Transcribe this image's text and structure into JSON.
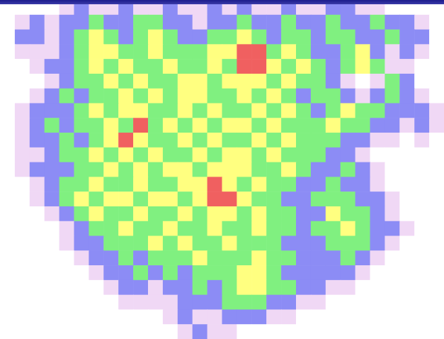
{
  "chart_data": {
    "type": "heatmap",
    "tick_labels": false,
    "clim": [
      0,
      5
    ],
    "colors": [
      "#ffffff",
      "#f0d8f5",
      "#8c8cf5",
      "#80f080",
      "#ffff80",
      "#f06060"
    ],
    "cells": [
      [
        0,
        0,
        0,
        0,
        1,
        2,
        1,
        1,
        2,
        1,
        1,
        2,
        1,
        1,
        2,
        1,
        2,
        1,
        1,
        2,
        1,
        1,
        2,
        2,
        1,
        1,
        0,
        0,
        0,
        0
      ],
      [
        0,
        1,
        2,
        1,
        2,
        2,
        3,
        2,
        2,
        3,
        3,
        2,
        2,
        1,
        2,
        2,
        3,
        2,
        2,
        3,
        2,
        2,
        3,
        2,
        2,
        3,
        2,
        2,
        1,
        0
      ],
      [
        0,
        2,
        2,
        1,
        2,
        3,
        4,
        3,
        2,
        3,
        4,
        3,
        2,
        2,
        3,
        3,
        4,
        3,
        2,
        3,
        3,
        2,
        3,
        3,
        2,
        2,
        3,
        2,
        2,
        0
      ],
      [
        0,
        1,
        1,
        1,
        2,
        3,
        4,
        4,
        3,
        3,
        4,
        3,
        3,
        3,
        4,
        4,
        5,
        5,
        3,
        4,
        3,
        2,
        2,
        3,
        4,
        2,
        1,
        2,
        1,
        0
      ],
      [
        0,
        0,
        1,
        2,
        2,
        3,
        4,
        3,
        4,
        3,
        3,
        4,
        3,
        3,
        4,
        3,
        5,
        5,
        4,
        3,
        4,
        3,
        2,
        3,
        4,
        3,
        1,
        1,
        0,
        0
      ],
      [
        0,
        0,
        0,
        1,
        2,
        3,
        3,
        4,
        3,
        4,
        3,
        3,
        4,
        4,
        3,
        4,
        4,
        4,
        3,
        4,
        3,
        3,
        2,
        1,
        0,
        1,
        3,
        2,
        0,
        0
      ],
      [
        0,
        0,
        1,
        2,
        3,
        2,
        3,
        3,
        4,
        3,
        4,
        3,
        4,
        4,
        3,
        3,
        4,
        3,
        4,
        3,
        2,
        3,
        3,
        2,
        1,
        2,
        3,
        2,
        1,
        0
      ],
      [
        0,
        1,
        2,
        2,
        2,
        3,
        4,
        3,
        4,
        4,
        3,
        3,
        4,
        3,
        4,
        3,
        3,
        4,
        3,
        4,
        3,
        2,
        3,
        4,
        3,
        3,
        2,
        2,
        2,
        1
      ],
      [
        0,
        1,
        2,
        3,
        2,
        3,
        3,
        4,
        3,
        5,
        3,
        4,
        3,
        4,
        3,
        4,
        4,
        3,
        4,
        3,
        3,
        3,
        4,
        3,
        3,
        2,
        2,
        1,
        2,
        1
      ],
      [
        0,
        1,
        2,
        2,
        3,
        2,
        3,
        4,
        5,
        4,
        3,
        3,
        4,
        3,
        4,
        3,
        3,
        4,
        3,
        4,
        3,
        3,
        3,
        2,
        2,
        1,
        1,
        0,
        1,
        0
      ],
      [
        0,
        1,
        1,
        2,
        3,
        3,
        4,
        3,
        4,
        3,
        4,
        3,
        3,
        4,
        3,
        4,
        4,
        3,
        4,
        3,
        3,
        3,
        2,
        2,
        1,
        0,
        0,
        0,
        0,
        0
      ],
      [
        0,
        1,
        2,
        2,
        2,
        3,
        3,
        4,
        3,
        4,
        3,
        4,
        4,
        3,
        4,
        4,
        4,
        3,
        3,
        4,
        3,
        2,
        2,
        3,
        2,
        1,
        0,
        0,
        0,
        0
      ],
      [
        0,
        0,
        1,
        2,
        3,
        3,
        4,
        3,
        3,
        4,
        3,
        3,
        4,
        4,
        5,
        4,
        3,
        4,
        3,
        3,
        2,
        2,
        3,
        2,
        2,
        1,
        0,
        0,
        0,
        0
      ],
      [
        0,
        0,
        1,
        2,
        3,
        4,
        3,
        4,
        4,
        3,
        4,
        4,
        3,
        4,
        5,
        5,
        4,
        3,
        3,
        2,
        2,
        3,
        3,
        3,
        2,
        2,
        1,
        0,
        0,
        0
      ],
      [
        0,
        0,
        0,
        1,
        2,
        3,
        4,
        3,
        3,
        4,
        3,
        3,
        4,
        3,
        4,
        4,
        3,
        4,
        3,
        3,
        2,
        2,
        4,
        3,
        3,
        2,
        1,
        0,
        0,
        0
      ],
      [
        0,
        0,
        0,
        0,
        1,
        2,
        3,
        3,
        4,
        3,
        3,
        4,
        3,
        3,
        4,
        3,
        3,
        4,
        3,
        3,
        2,
        3,
        3,
        4,
        3,
        2,
        2,
        1,
        0,
        0
      ],
      [
        0,
        0,
        0,
        0,
        1,
        2,
        2,
        3,
        3,
        3,
        4,
        3,
        4,
        3,
        3,
        4,
        3,
        3,
        3,
        2,
        2,
        2,
        3,
        3,
        3,
        2,
        1,
        0,
        0,
        0
      ],
      [
        0,
        0,
        0,
        0,
        0,
        1,
        2,
        2,
        3,
        2,
        3,
        3,
        3,
        4,
        3,
        3,
        3,
        4,
        3,
        3,
        2,
        2,
        2,
        3,
        2,
        1,
        0,
        0,
        0,
        0
      ],
      [
        0,
        0,
        0,
        0,
        0,
        0,
        1,
        2,
        2,
        3,
        2,
        3,
        2,
        3,
        3,
        3,
        4,
        4,
        3,
        2,
        2,
        2,
        2,
        2,
        1,
        0,
        0,
        0,
        0,
        0
      ],
      [
        0,
        0,
        0,
        0,
        0,
        0,
        0,
        1,
        2,
        2,
        1,
        2,
        2,
        3,
        2,
        3,
        4,
        4,
        3,
        3,
        2,
        2,
        1,
        1,
        0,
        0,
        0,
        0,
        0,
        0
      ],
      [
        0,
        0,
        0,
        0,
        0,
        0,
        0,
        0,
        1,
        1,
        1,
        1,
        2,
        2,
        2,
        3,
        3,
        3,
        2,
        2,
        1,
        1,
        0,
        0,
        0,
        0,
        0,
        0,
        0,
        0
      ],
      [
        0,
        0,
        0,
        0,
        0,
        0,
        0,
        0,
        0,
        0,
        0,
        1,
        2,
        1,
        1,
        2,
        2,
        2,
        1,
        1,
        0,
        0,
        0,
        0,
        0,
        0,
        0,
        0,
        0,
        0
      ],
      [
        0,
        0,
        0,
        0,
        0,
        0,
        0,
        0,
        0,
        0,
        0,
        0,
        1,
        2,
        1,
        1,
        0,
        0,
        0,
        0,
        0,
        0,
        0,
        0,
        0,
        0,
        0,
        0,
        0,
        0
      ]
    ]
  }
}
